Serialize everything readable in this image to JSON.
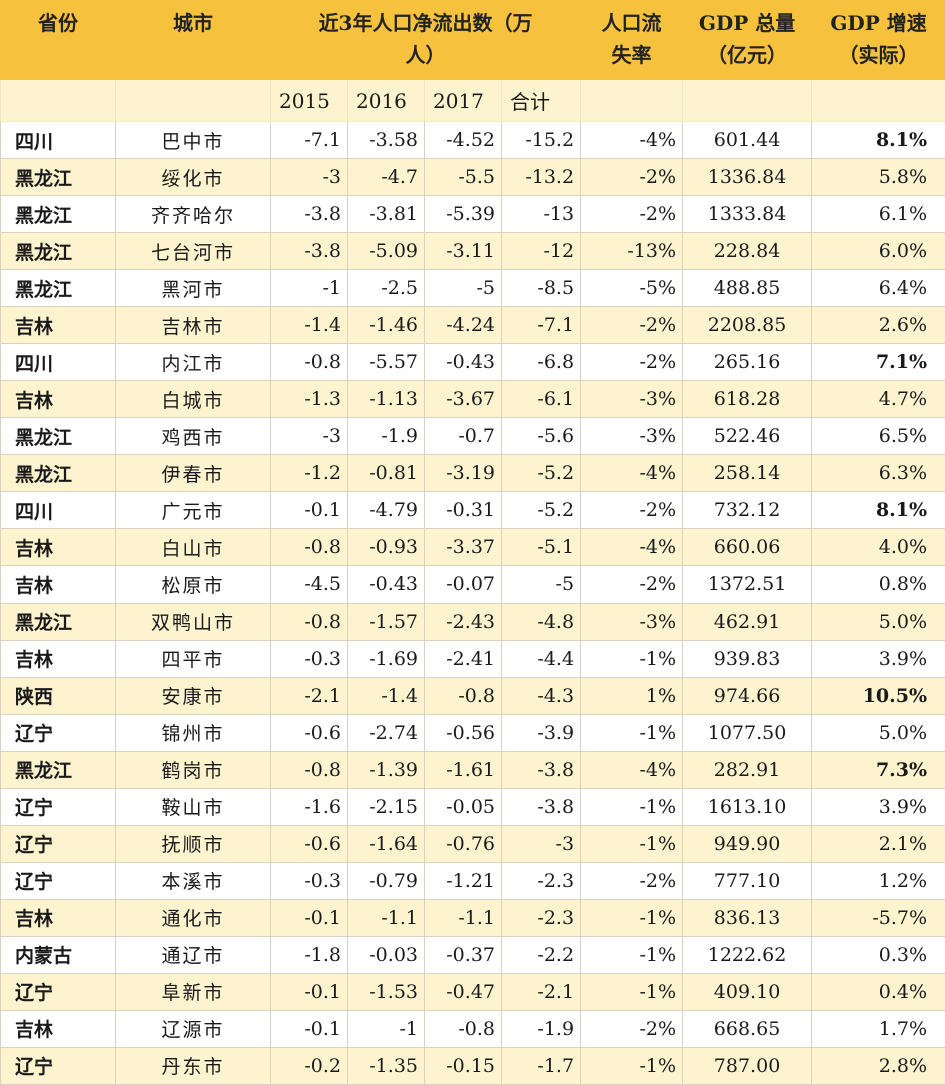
{
  "header": {
    "province": "省份",
    "city": "城市",
    "net_outflow_line1": "近3年人口净流出数（万",
    "net_outflow_line2": "人）",
    "loss_rate_line1": "人口流",
    "loss_rate_line2": "失率",
    "gdp_total_line1": "GDP 总量",
    "gdp_total_line2": "（亿元）",
    "gdp_growth_line1": "GDP 增速",
    "gdp_growth_line2": "（实际）"
  },
  "subheader": {
    "y2015": "2015",
    "y2016": "2016",
    "y2017": "2017",
    "total": "合计"
  },
  "rows": [
    {
      "province": "四川",
      "city": "巴中市",
      "y2015": "-7.1",
      "y2016": "-3.58",
      "y2017": "-4.52",
      "total": "-15.2",
      "loss_rate": "-4%",
      "gdp": "601.44",
      "growth": "8.1%",
      "bold": true
    },
    {
      "province": "黑龙江",
      "city": "绥化市",
      "y2015": "-3",
      "y2016": "-4.7",
      "y2017": "-5.5",
      "total": "-13.2",
      "loss_rate": "-2%",
      "gdp": "1336.84",
      "growth": "5.8%",
      "bold": false
    },
    {
      "province": "黑龙江",
      "city": "齐齐哈尔",
      "y2015": "-3.8",
      "y2016": "-3.81",
      "y2017": "-5.39",
      "total": "-13",
      "loss_rate": "-2%",
      "gdp": "1333.84",
      "growth": "6.1%",
      "bold": false
    },
    {
      "province": "黑龙江",
      "city": "七台河市",
      "y2015": "-3.8",
      "y2016": "-5.09",
      "y2017": "-3.11",
      "total": "-12",
      "loss_rate": "-13%",
      "gdp": "228.84",
      "growth": "6.0%",
      "bold": false
    },
    {
      "province": "黑龙江",
      "city": "黑河市",
      "y2015": "-1",
      "y2016": "-2.5",
      "y2017": "-5",
      "total": "-8.5",
      "loss_rate": "-5%",
      "gdp": "488.85",
      "growth": "6.4%",
      "bold": false
    },
    {
      "province": "吉林",
      "city": "吉林市",
      "y2015": "-1.4",
      "y2016": "-1.46",
      "y2017": "-4.24",
      "total": "-7.1",
      "loss_rate": "-2%",
      "gdp": "2208.85",
      "growth": "2.6%",
      "bold": false
    },
    {
      "province": "四川",
      "city": "内江市",
      "y2015": "-0.8",
      "y2016": "-5.57",
      "y2017": "-0.43",
      "total": "-6.8",
      "loss_rate": "-2%",
      "gdp": "265.16",
      "growth": "7.1%",
      "bold": true
    },
    {
      "province": "吉林",
      "city": "白城市",
      "y2015": "-1.3",
      "y2016": "-1.13",
      "y2017": "-3.67",
      "total": "-6.1",
      "loss_rate": "-3%",
      "gdp": "618.28",
      "growth": "4.7%",
      "bold": false
    },
    {
      "province": "黑龙江",
      "city": "鸡西市",
      "y2015": "-3",
      "y2016": "-1.9",
      "y2017": "-0.7",
      "total": "-5.6",
      "loss_rate": "-3%",
      "gdp": "522.46",
      "growth": "6.5%",
      "bold": false
    },
    {
      "province": "黑龙江",
      "city": "伊春市",
      "y2015": "-1.2",
      "y2016": "-0.81",
      "y2017": "-3.19",
      "total": "-5.2",
      "loss_rate": "-4%",
      "gdp": "258.14",
      "growth": "6.3%",
      "bold": false
    },
    {
      "province": "四川",
      "city": "广元市",
      "y2015": "-0.1",
      "y2016": "-4.79",
      "y2017": "-0.31",
      "total": "-5.2",
      "loss_rate": "-2%",
      "gdp": "732.12",
      "growth": "8.1%",
      "bold": true
    },
    {
      "province": "吉林",
      "city": "白山市",
      "y2015": "-0.8",
      "y2016": "-0.93",
      "y2017": "-3.37",
      "total": "-5.1",
      "loss_rate": "-4%",
      "gdp": "660.06",
      "growth": "4.0%",
      "bold": false
    },
    {
      "province": "吉林",
      "city": "松原市",
      "y2015": "-4.5",
      "y2016": "-0.43",
      "y2017": "-0.07",
      "total": "-5",
      "loss_rate": "-2%",
      "gdp": "1372.51",
      "growth": "0.8%",
      "bold": false
    },
    {
      "province": "黑龙江",
      "city": "双鸭山市",
      "y2015": "-0.8",
      "y2016": "-1.57",
      "y2017": "-2.43",
      "total": "-4.8",
      "loss_rate": "-3%",
      "gdp": "462.91",
      "growth": "5.0%",
      "bold": false
    },
    {
      "province": "吉林",
      "city": "四平市",
      "y2015": "-0.3",
      "y2016": "-1.69",
      "y2017": "-2.41",
      "total": "-4.4",
      "loss_rate": "-1%",
      "gdp": "939.83",
      "growth": "3.9%",
      "bold": false
    },
    {
      "province": "陕西",
      "city": "安康市",
      "y2015": "-2.1",
      "y2016": "-1.4",
      "y2017": "-0.8",
      "total": "-4.3",
      "loss_rate": "1%",
      "gdp": "974.66",
      "growth": "10.5%",
      "bold": true
    },
    {
      "province": "辽宁",
      "city": "锦州市",
      "y2015": "-0.6",
      "y2016": "-2.74",
      "y2017": "-0.56",
      "total": "-3.9",
      "loss_rate": "-1%",
      "gdp": "1077.50",
      "growth": "5.0%",
      "bold": false
    },
    {
      "province": "黑龙江",
      "city": "鹤岗市",
      "y2015": "-0.8",
      "y2016": "-1.39",
      "y2017": "-1.61",
      "total": "-3.8",
      "loss_rate": "-4%",
      "gdp": "282.91",
      "growth": "7.3%",
      "bold": true
    },
    {
      "province": "辽宁",
      "city": "鞍山市",
      "y2015": "-1.6",
      "y2016": "-2.15",
      "y2017": "-0.05",
      "total": "-3.8",
      "loss_rate": "-1%",
      "gdp": "1613.10",
      "growth": "3.9%",
      "bold": false
    },
    {
      "province": "辽宁",
      "city": "抚顺市",
      "y2015": "-0.6",
      "y2016": "-1.64",
      "y2017": "-0.76",
      "total": "-3",
      "loss_rate": "-1%",
      "gdp": "949.90",
      "growth": "2.1%",
      "bold": false
    },
    {
      "province": "辽宁",
      "city": "本溪市",
      "y2015": "-0.3",
      "y2016": "-0.79",
      "y2017": "-1.21",
      "total": "-2.3",
      "loss_rate": "-2%",
      "gdp": "777.10",
      "growth": "1.2%",
      "bold": false
    },
    {
      "province": "吉林",
      "city": "通化市",
      "y2015": "-0.1",
      "y2016": "-1.1",
      "y2017": "-1.1",
      "total": "-2.3",
      "loss_rate": "-1%",
      "gdp": "836.13",
      "growth": "-5.7%",
      "bold": false
    },
    {
      "province": "内蒙古",
      "city": "通辽市",
      "y2015": "-1.8",
      "y2016": "-0.03",
      "y2017": "-0.37",
      "total": "-2.2",
      "loss_rate": "-1%",
      "gdp": "1222.62",
      "growth": "0.3%",
      "bold": false
    },
    {
      "province": "辽宁",
      "city": "阜新市",
      "y2015": "-0.1",
      "y2016": "-1.53",
      "y2017": "-0.47",
      "total": "-2.1",
      "loss_rate": "-1%",
      "gdp": "409.10",
      "growth": "0.4%",
      "bold": false
    },
    {
      "province": "吉林",
      "city": "辽源市",
      "y2015": "-0.1",
      "y2016": "-1",
      "y2017": "-0.8",
      "total": "-1.9",
      "loss_rate": "-2%",
      "gdp": "668.65",
      "growth": "1.7%",
      "bold": false
    },
    {
      "province": "辽宁",
      "city": "丹东市",
      "y2015": "-0.2",
      "y2016": "-1.35",
      "y2017": "-0.15",
      "total": "-1.7",
      "loss_rate": "-1%",
      "gdp": "787.00",
      "growth": "2.8%",
      "bold": false
    }
  ]
}
